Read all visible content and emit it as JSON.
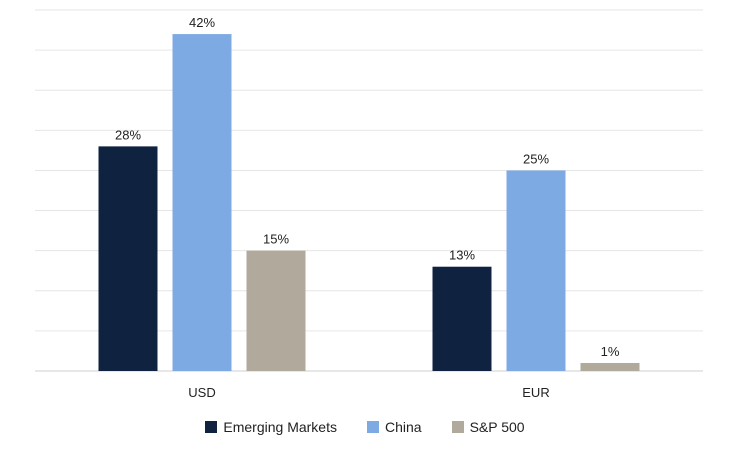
{
  "chart_data": {
    "type": "bar",
    "categories": [
      "USD",
      "EUR"
    ],
    "series": [
      {
        "name": "Emerging Markets",
        "values": [
          28,
          13
        ],
        "color": "#0f2340"
      },
      {
        "name": "China",
        "values": [
          42,
          25
        ],
        "color": "#7eaae4"
      },
      {
        "name": "S&P 500",
        "values": [
          15,
          1
        ],
        "color": "#b1a99c"
      }
    ],
    "value_labels": [
      [
        "28%",
        "13%"
      ],
      [
        "42%",
        "25%"
      ],
      [
        "15%",
        "1%"
      ]
    ],
    "ylim": [
      0,
      45
    ],
    "grid": true,
    "legend_position": "bottom"
  }
}
